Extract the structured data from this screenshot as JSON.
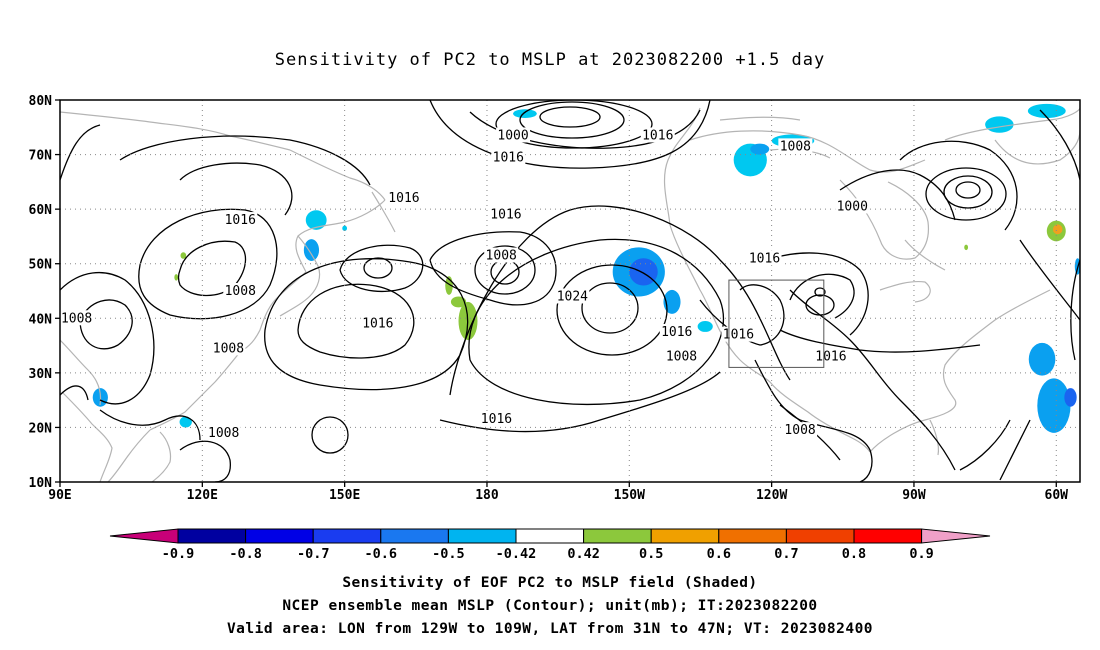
{
  "title": "Sensitivity of PC2 to MSLP at 2023082200 +1.5 day",
  "map": {
    "lat_labels": [
      "80N",
      "70N",
      "60N",
      "50N",
      "40N",
      "30N",
      "20N",
      "10N"
    ],
    "lon_labels": [
      "90E",
      "120E",
      "150E",
      "180",
      "150W",
      "120W",
      "90W",
      "60W"
    ],
    "lat_range": [
      10,
      80
    ],
    "lon_range": [
      90,
      305
    ],
    "grid": "dotted",
    "valid_area": {
      "lon": [
        231,
        251
      ],
      "lat": [
        31,
        47
      ]
    },
    "contour_labels": [
      {
        "text": "1000",
        "lon": 185.5,
        "lat": 73.5
      },
      {
        "text": "1016",
        "lon": 184.5,
        "lat": 69.5
      },
      {
        "text": "1016",
        "lon": 216,
        "lat": 73.5
      },
      {
        "text": "1008",
        "lon": 245,
        "lat": 71.5
      },
      {
        "text": "1016",
        "lon": 162.5,
        "lat": 62
      },
      {
        "text": "1016",
        "lon": 128,
        "lat": 58
      },
      {
        "text": "1016",
        "lon": 184,
        "lat": 59
      },
      {
        "text": "1000",
        "lon": 257,
        "lat": 60.5
      },
      {
        "text": "1008",
        "lon": 183,
        "lat": 51.5
      },
      {
        "text": "1016",
        "lon": 238.5,
        "lat": 51
      },
      {
        "text": "1008",
        "lon": 128,
        "lat": 45
      },
      {
        "text": "1024",
        "lon": 198,
        "lat": 44
      },
      {
        "text": "1008",
        "lon": 93.5,
        "lat": 40
      },
      {
        "text": "1016",
        "lon": 157,
        "lat": 39
      },
      {
        "text": "1016",
        "lon": 220,
        "lat": 37.5
      },
      {
        "text": "1016",
        "lon": 233,
        "lat": 37
      },
      {
        "text": "1008",
        "lon": 125.5,
        "lat": 34.5
      },
      {
        "text": "1008",
        "lon": 221,
        "lat": 33
      },
      {
        "text": "1016",
        "lon": 252.5,
        "lat": 33
      },
      {
        "text": "1016",
        "lon": 182,
        "lat": 21.5
      },
      {
        "text": "1008",
        "lon": 124.5,
        "lat": 19
      },
      {
        "text": "1008",
        "lon": 246,
        "lat": 19.5
      }
    ],
    "shaded_regions": [
      {
        "lon": 188,
        "lat": 77.5,
        "rx": 2.5,
        "ry": 0.8,
        "color": "#00c8f0"
      },
      {
        "lon": 212,
        "lat": 48.5,
        "rx": 5.5,
        "ry": 4.5,
        "color": "#0aa0f0"
      },
      {
        "lon": 213,
        "lat": 48.5,
        "rx": 3,
        "ry": 2.5,
        "color": "#1a64f0"
      },
      {
        "lon": 219,
        "lat": 43,
        "rx": 1.8,
        "ry": 2.2,
        "color": "#0aa0f0"
      },
      {
        "lon": 226,
        "lat": 38.5,
        "rx": 1.6,
        "ry": 1,
        "color": "#00c8f0"
      },
      {
        "lon": 235.5,
        "lat": 69,
        "rx": 3.5,
        "ry": 3,
        "color": "#00c8f0"
      },
      {
        "lon": 237.5,
        "lat": 71,
        "rx": 2,
        "ry": 1,
        "color": "#0aa0f0"
      },
      {
        "lon": 244.5,
        "lat": 72.5,
        "rx": 4.5,
        "ry": 1.2,
        "color": "#00c8f0"
      },
      {
        "lon": 288,
        "lat": 75.5,
        "rx": 3,
        "ry": 1.5,
        "color": "#00c8f0"
      },
      {
        "lon": 298,
        "lat": 78,
        "rx": 4,
        "ry": 1.3,
        "color": "#00c8f0"
      },
      {
        "lon": 144,
        "lat": 58,
        "rx": 2.2,
        "ry": 1.8,
        "color": "#00c8f0"
      },
      {
        "lon": 143,
        "lat": 52.5,
        "rx": 1.6,
        "ry": 2,
        "color": "#0aa0f0"
      },
      {
        "lon": 150,
        "lat": 56.5,
        "rx": 0.5,
        "ry": 0.5,
        "color": "#00c8f0"
      },
      {
        "lon": 98.5,
        "lat": 25.5,
        "rx": 1.6,
        "ry": 1.7,
        "color": "#0aa0f0"
      },
      {
        "lon": 116.5,
        "lat": 21,
        "rx": 1.3,
        "ry": 1,
        "color": "#00c8f0"
      },
      {
        "lon": 297,
        "lat": 32.5,
        "rx": 2.8,
        "ry": 3,
        "color": "#0aa0f0"
      },
      {
        "lon": 299.5,
        "lat": 24,
        "rx": 3.5,
        "ry": 5,
        "color": "#0aa0f0"
      },
      {
        "lon": 303,
        "lat": 25.5,
        "rx": 1.3,
        "ry": 1.7,
        "color": "#1a64f0"
      },
      {
        "lon": 304.5,
        "lat": 49.5,
        "rx": 0.6,
        "ry": 1.5,
        "color": "#0aa0f0"
      },
      {
        "lon": 176,
        "lat": 39.5,
        "rx": 2,
        "ry": 3.5,
        "color": "#8cc83c"
      },
      {
        "lon": 174,
        "lat": 43,
        "rx": 1.6,
        "ry": 1,
        "color": "#8cc83c"
      },
      {
        "lon": 172,
        "lat": 46,
        "rx": 0.8,
        "ry": 1.7,
        "color": "#8cc83c"
      },
      {
        "lon": 116,
        "lat": 51.5,
        "rx": 0.6,
        "ry": 0.6,
        "color": "#8cc83c"
      },
      {
        "lon": 114.5,
        "lat": 47.5,
        "rx": 0.4,
        "ry": 0.6,
        "color": "#8cc83c"
      },
      {
        "lon": 300,
        "lat": 56,
        "rx": 2,
        "ry": 1.9,
        "color": "#8cc83c"
      },
      {
        "lon": 300.3,
        "lat": 56.3,
        "rx": 1,
        "ry": 0.9,
        "color": "#f0a020"
      },
      {
        "lon": 281,
        "lat": 53,
        "rx": 0.4,
        "ry": 0.5,
        "color": "#8cc83c"
      }
    ]
  },
  "colorbar": {
    "labels": [
      "-0.9",
      "-0.8",
      "-0.7",
      "-0.6",
      "-0.5",
      "-0.42",
      "0.42",
      "0.5",
      "0.6",
      "0.7",
      "0.8",
      "0.9"
    ],
    "colors": [
      "#0000a0",
      "#0000e6",
      "#1a3cf0",
      "#1a78f0",
      "#00b4f0",
      "#ffffff",
      "#8cc83c",
      "#f0a000",
      "#f07000",
      "#f04000",
      "#ff0000"
    ],
    "left_arrow_color": "#c80078",
    "right_arrow_color": "#f0a0c8"
  },
  "captions": [
    "Sensitivity of EOF PC2 to MSLP field (Shaded)",
    "NCEP ensemble mean MSLP (Contour); unit(mb); IT:2023082200",
    "Valid area: LON from 129W to 109W, LAT from 31N to 47N; VT: 2023082400"
  ]
}
